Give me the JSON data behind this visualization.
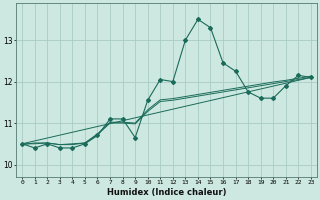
{
  "xlabel": "Humidex (Indice chaleur)",
  "ylabel": "",
  "xlim": [
    -0.5,
    23.5
  ],
  "ylim": [
    9.7,
    13.9
  ],
  "yticks": [
    10,
    11,
    12,
    13
  ],
  "xticks": [
    0,
    1,
    2,
    3,
    4,
    5,
    6,
    7,
    8,
    9,
    10,
    11,
    12,
    13,
    14,
    15,
    16,
    17,
    18,
    19,
    20,
    21,
    22,
    23
  ],
  "bg_color": "#cde8e0",
  "grid_color": "#aaccc4",
  "line_color": "#1a6b5a",
  "series_main": {
    "x": [
      0,
      1,
      2,
      3,
      4,
      5,
      6,
      7,
      8,
      9,
      10,
      11,
      12,
      13,
      14,
      15,
      16,
      17,
      18,
      19,
      20,
      21,
      22,
      23
    ],
    "y": [
      10.5,
      10.4,
      10.5,
      10.4,
      10.4,
      10.5,
      10.7,
      11.1,
      11.1,
      10.65,
      11.55,
      12.05,
      12.0,
      13.0,
      13.5,
      13.3,
      12.45,
      12.25,
      11.75,
      11.6,
      11.6,
      11.9,
      12.15,
      12.1
    ]
  },
  "series_trend1": {
    "x": [
      0,
      1,
      2,
      3,
      4,
      5,
      6,
      7,
      8,
      9,
      10,
      11,
      12,
      13,
      14,
      15,
      16,
      17,
      18,
      19,
      20,
      21,
      22,
      23
    ],
    "y": [
      10.48,
      10.52,
      10.52,
      10.48,
      10.48,
      10.52,
      10.72,
      11.0,
      11.0,
      10.98,
      11.28,
      11.52,
      11.55,
      11.6,
      11.65,
      11.7,
      11.75,
      11.8,
      11.85,
      11.9,
      11.95,
      12.0,
      12.05,
      12.1
    ]
  },
  "series_trend2": {
    "x": [
      0,
      1,
      2,
      3,
      4,
      5,
      6,
      7,
      8,
      9,
      10,
      11,
      12,
      13,
      14,
      15,
      16,
      17,
      18,
      19,
      20,
      21,
      22,
      23
    ],
    "y": [
      10.5,
      10.5,
      10.52,
      10.48,
      10.5,
      10.52,
      10.74,
      11.02,
      11.02,
      11.0,
      11.32,
      11.56,
      11.59,
      11.64,
      11.69,
      11.74,
      11.79,
      11.84,
      11.89,
      11.94,
      11.99,
      12.03,
      12.08,
      12.13
    ]
  },
  "series_linear": {
    "x": [
      0,
      23
    ],
    "y": [
      10.5,
      12.1
    ]
  }
}
